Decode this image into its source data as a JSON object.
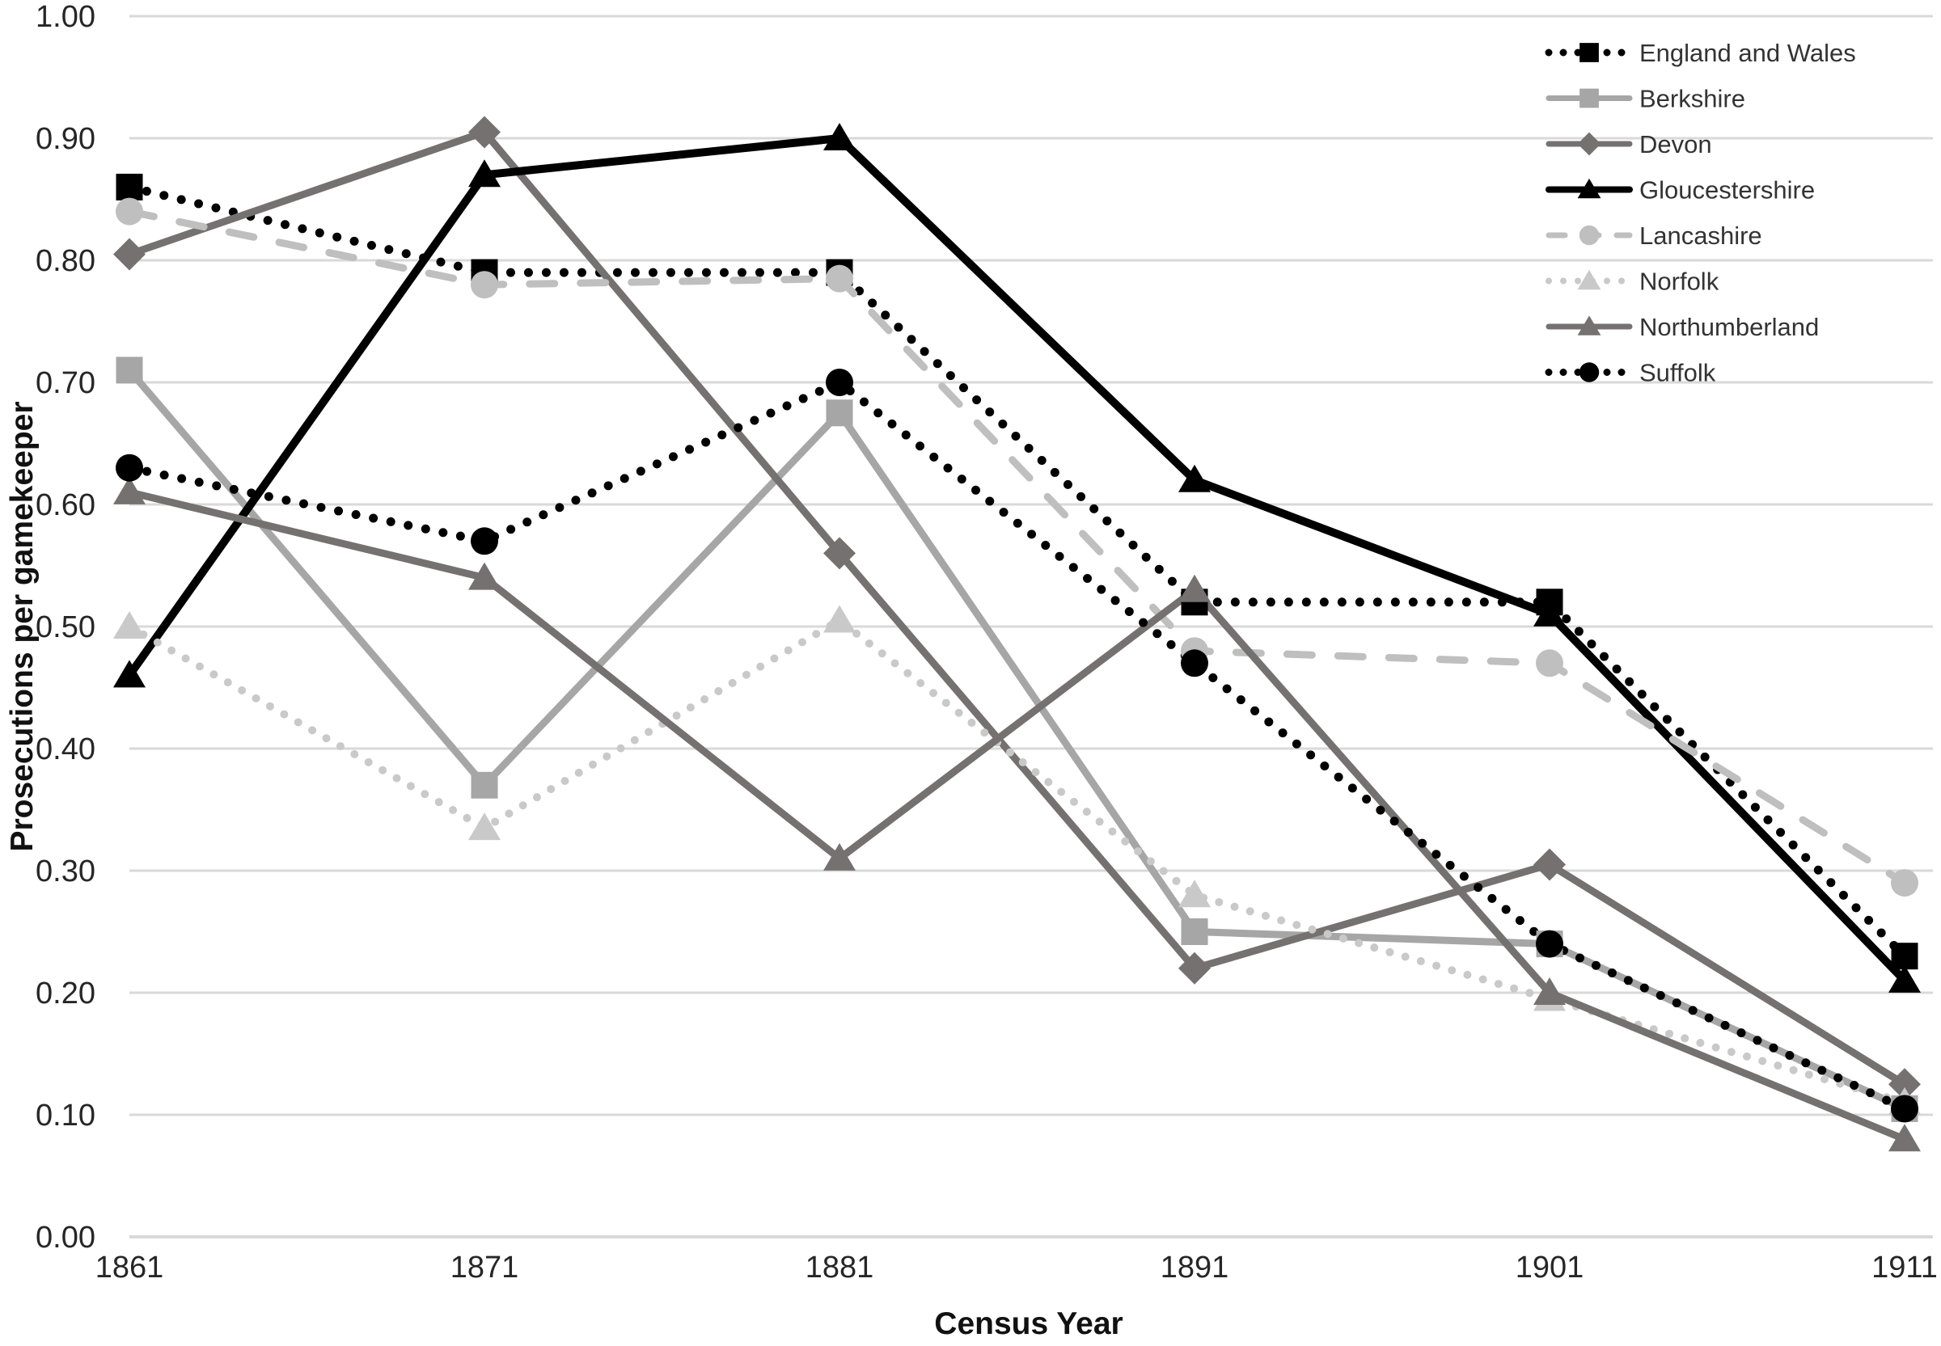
{
  "chart_data": {
    "type": "line",
    "title": "",
    "xlabel": "Census Year",
    "ylabel": "Prosecutions per gamekeeper",
    "categories": [
      "1861",
      "1871",
      "1881",
      "1891",
      "1901",
      "1911"
    ],
    "ylim": [
      0.0,
      1.0
    ],
    "ytick_step": 0.1,
    "ytick_labels": [
      "0.00",
      "0.10",
      "0.20",
      "0.30",
      "0.40",
      "0.50",
      "0.60",
      "0.70",
      "0.80",
      "0.90",
      "1.00"
    ],
    "grid": "horizontal",
    "gridline_color": "#d9d9d9",
    "legend_position": "top-right-inside",
    "series": [
      {
        "name": "England and Wales",
        "color": "#000000",
        "line": "dotted",
        "marker": "square",
        "values": [
          0.86,
          0.79,
          0.79,
          0.52,
          0.52,
          0.23
        ]
      },
      {
        "name": "Berkshire",
        "color": "#a6a6a6",
        "line": "solid",
        "marker": "square",
        "values": [
          0.71,
          0.37,
          0.675,
          0.25,
          0.24,
          0.105
        ]
      },
      {
        "name": "Devon",
        "color": "#767171",
        "line": "solid",
        "marker": "diamond",
        "values": [
          0.805,
          0.905,
          0.56,
          0.22,
          0.305,
          0.125
        ]
      },
      {
        "name": "Gloucestershire",
        "color": "#000000",
        "line": "solid",
        "marker": "triangle",
        "values": [
          0.46,
          0.87,
          0.9,
          0.62,
          0.51,
          0.21
        ]
      },
      {
        "name": "Lancashire",
        "color": "#bfbfbf",
        "line": "dashed",
        "marker": "circle",
        "values": [
          0.84,
          0.78,
          0.785,
          0.48,
          0.47,
          0.29
        ]
      },
      {
        "name": "Norfolk",
        "color": "#c9c9c9",
        "line": "dotted-fine",
        "marker": "triangle",
        "values": [
          0.5,
          0.335,
          0.505,
          0.28,
          0.195,
          0.11
        ]
      },
      {
        "name": "Northumberland",
        "color": "#767171",
        "line": "solid",
        "marker": "triangle",
        "values": [
          0.61,
          0.54,
          0.31,
          0.53,
          0.2,
          0.08
        ]
      },
      {
        "name": "Suffolk",
        "color": "#000000",
        "line": "dotted",
        "marker": "circle",
        "values": [
          0.63,
          0.57,
          0.7,
          0.47,
          0.24,
          0.105
        ]
      }
    ]
  }
}
